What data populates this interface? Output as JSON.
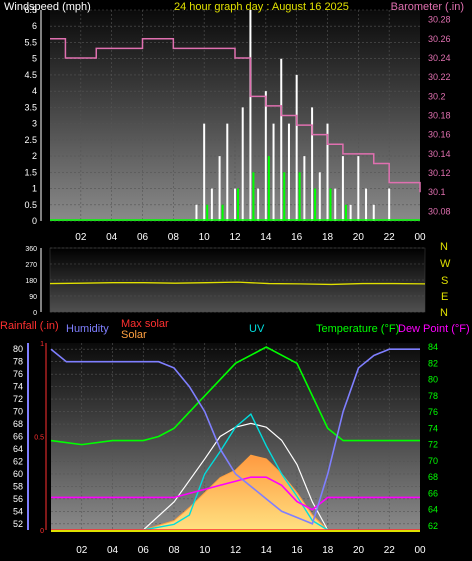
{
  "header": {
    "left_title": "Windspeed (mph)",
    "center_title": "24 hour graph day : August 16 2025",
    "right_title": "Barometer (.in)"
  },
  "colors": {
    "windspeed": "#ffffff",
    "gust": "#00ff00",
    "barometer": "#e070b0",
    "direction": "#e0e000",
    "rainfall": "#ff3030",
    "humidity": "#7f7fff",
    "max_solar": "#ffffff",
    "solar": "#ffa040",
    "uv": "#00dddd",
    "temperature": "#00ff00",
    "dewpoint": "#ff00ff"
  },
  "legend2": {
    "rainfall": "Rainfall (.in)",
    "humidity": "Humidity",
    "max_solar": "Max solar",
    "solar": "Solar",
    "uv": "UV",
    "temperature": "Temperature (°F)",
    "dewpoint": "Dew Point (°F)"
  },
  "direction_labels": [
    "N",
    "W",
    "S",
    "E",
    "N"
  ],
  "chart_data": [
    {
      "id": "wind",
      "type": "line",
      "x_ticks": [
        "02",
        "04",
        "06",
        "08",
        "10",
        "12",
        "14",
        "16",
        "18",
        "20",
        "22",
        "00"
      ],
      "y_left_ticks": [
        "0",
        "0.5",
        "1",
        "1.5",
        "2",
        "2.5",
        "3",
        "3.5",
        "4",
        "4.5",
        "5",
        "5.5",
        "6",
        "6.5"
      ],
      "y_right_ticks": [
        "30.08",
        "30.1",
        "30.12",
        "30.14",
        "30.16",
        "30.18",
        "30.2",
        "30.22",
        "30.24",
        "30.26",
        "30.28"
      ],
      "ylim_left": [
        0,
        6.5
      ],
      "ylim_right": [
        30.07,
        30.29
      ],
      "series": [
        {
          "key": "windspeed",
          "hours": [
            0,
            1,
            2,
            3,
            4,
            5,
            6,
            7,
            8,
            9,
            9.5,
            10,
            10.5,
            11,
            11.5,
            12,
            12.5,
            13,
            13.5,
            14,
            14.5,
            15,
            15.5,
            16,
            16.5,
            17,
            17.5,
            18,
            18.5,
            19,
            19.5,
            20,
            20.5,
            21,
            21.5,
            22,
            22.5,
            23,
            23.5,
            24
          ],
          "values": [
            0,
            0,
            0,
            0,
            0,
            0,
            0,
            0,
            0,
            0,
            0.5,
            3,
            1,
            2,
            3,
            1,
            3.5,
            6.5,
            1,
            4,
            3,
            5,
            3,
            4.5,
            2,
            3.5,
            1.5,
            3,
            1,
            2,
            0.5,
            2,
            1,
            0.5,
            0,
            1,
            0,
            0,
            0,
            0
          ]
        },
        {
          "key": "gust",
          "hours": [
            0,
            1,
            2,
            3,
            4,
            5,
            6,
            7,
            8,
            9,
            10,
            11,
            12,
            13,
            14,
            15,
            16,
            17,
            18,
            19,
            20,
            21,
            22,
            23,
            24
          ],
          "values": [
            0,
            0,
            0,
            0,
            0,
            0,
            0,
            0,
            0,
            0,
            0.5,
            0.5,
            1,
            1.5,
            2,
            1.5,
            1.5,
            1,
            1,
            0.5,
            0,
            0,
            0,
            0,
            0
          ]
        },
        {
          "key": "barometer",
          "axis": "right",
          "hours": [
            0,
            1,
            2,
            3,
            4,
            5,
            6,
            7,
            8,
            9,
            10,
            11,
            12,
            13,
            14,
            15,
            16,
            17,
            18,
            19,
            20,
            21,
            22,
            23,
            24
          ],
          "values": [
            30.26,
            30.24,
            30.24,
            30.25,
            30.25,
            30.25,
            30.26,
            30.26,
            30.25,
            30.25,
            30.25,
            30.25,
            30.24,
            30.2,
            30.19,
            30.18,
            30.17,
            30.16,
            30.15,
            30.14,
            30.14,
            30.13,
            30.11,
            30.11,
            30.1
          ]
        }
      ]
    },
    {
      "id": "direction",
      "type": "line",
      "y_ticks": [
        "360",
        "270",
        "180",
        "90",
        "0"
      ],
      "ylim": [
        0,
        360
      ],
      "series": [
        {
          "key": "direction",
          "hours": [
            0,
            2,
            4,
            6,
            8,
            10,
            12,
            14,
            16,
            18,
            20,
            22,
            24
          ],
          "values": [
            160,
            162,
            165,
            165,
            162,
            165,
            168,
            160,
            158,
            155,
            160,
            160,
            158
          ]
        }
      ]
    },
    {
      "id": "weather",
      "type": "line",
      "x_ticks": [
        "02",
        "04",
        "06",
        "08",
        "10",
        "12",
        "14",
        "16",
        "18",
        "20",
        "22",
        "00"
      ],
      "humidity_ticks": [
        "52",
        "54",
        "56",
        "58",
        "60",
        "62",
        "64",
        "66",
        "68",
        "70",
        "72",
        "74",
        "76",
        "78",
        "80"
      ],
      "humidity_lim": [
        51,
        81
      ],
      "rain_ticks": [
        "0",
        "0.5",
        "1"
      ],
      "rain_lim": [
        0,
        1
      ],
      "temp_ticks": [
        "62",
        "64",
        "66",
        "68",
        "70",
        "72",
        "74",
        "76",
        "78",
        "80",
        "82",
        "84"
      ],
      "temp_lim": [
        61.5,
        84.5
      ],
      "series": [
        {
          "key": "humidity",
          "hours": [
            0,
            1,
            2,
            4,
            6,
            7,
            8,
            9,
            10,
            11,
            12,
            13,
            14,
            15,
            16,
            17,
            18,
            19,
            20,
            21,
            22,
            24
          ],
          "values": [
            80,
            78,
            78,
            78,
            78,
            78,
            77,
            74,
            70,
            64,
            60,
            58,
            56,
            54,
            53,
            52,
            60,
            70,
            77,
            79,
            80,
            80
          ]
        },
        {
          "key": "temperature",
          "hours": [
            0,
            2,
            4,
            6,
            7,
            8,
            9,
            10,
            11,
            12,
            13,
            14,
            15,
            16,
            17,
            18,
            19,
            20,
            22,
            24
          ],
          "values": [
            72.5,
            72,
            72.5,
            72.5,
            73,
            74,
            76,
            78,
            80,
            82,
            83,
            84,
            83,
            82,
            78,
            74,
            72.5,
            72.5,
            72.5,
            72.5
          ]
        },
        {
          "key": "dewpoint",
          "hours": [
            0,
            2,
            4,
            6,
            8,
            9,
            10,
            11,
            12,
            13,
            14,
            15,
            16,
            17,
            18,
            20,
            22,
            24
          ],
          "values": [
            65.5,
            65.5,
            65.5,
            65.5,
            65.5,
            66,
            66.5,
            67,
            67.5,
            68,
            68,
            67,
            65,
            64,
            65.5,
            65.5,
            65.5,
            65.5
          ]
        },
        {
          "key": "max_solar",
          "hours": [
            6,
            8,
            10,
            11,
            12,
            13,
            14,
            15,
            16,
            17,
            18
          ],
          "values": [
            0,
            0.15,
            0.38,
            0.5,
            0.55,
            0.57,
            0.55,
            0.48,
            0.35,
            0.15,
            0
          ]
        },
        {
          "key": "solar",
          "hours": [
            6,
            8,
            9,
            10,
            11,
            12,
            13,
            14,
            15,
            16,
            17,
            18
          ],
          "values": [
            0,
            0.05,
            0.12,
            0.2,
            0.28,
            0.32,
            0.4,
            0.38,
            0.3,
            0.2,
            0.08,
            0
          ]
        },
        {
          "key": "uv",
          "hours": [
            6,
            8,
            9,
            10,
            11,
            12,
            13,
            14,
            15,
            16,
            17,
            18
          ],
          "values": [
            0,
            0.03,
            0.08,
            0.3,
            0.42,
            0.55,
            0.62,
            0.45,
            0.3,
            0.18,
            0.05,
            0
          ]
        },
        {
          "key": "rainfall",
          "hours": [
            0,
            24
          ],
          "values": [
            0,
            0
          ]
        }
      ]
    }
  ]
}
